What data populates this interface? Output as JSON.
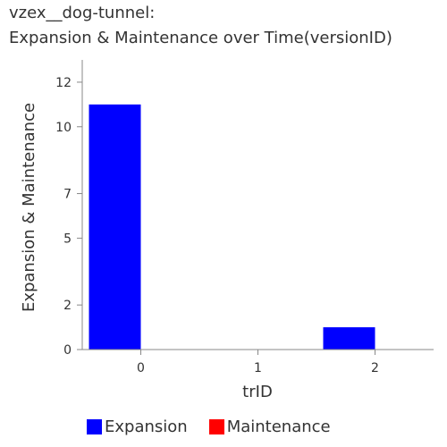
{
  "chart_data": {
    "type": "bar",
    "title_lines": [
      "vzex__dog-tunnel:",
      "Expansion & Maintenance over Time(versionID)"
    ],
    "xlabel": "trID",
    "ylabel": "Expansion & Maintenance",
    "categories": [
      "0",
      "1",
      "2"
    ],
    "series": [
      {
        "name": "Expansion",
        "color": "#0000ff",
        "values": [
          11,
          0,
          1
        ]
      },
      {
        "name": "Maintenance",
        "color": "#ff0000",
        "values": [
          0,
          0,
          0
        ]
      }
    ],
    "ylim": [
      0,
      13
    ],
    "yticks": [
      0,
      2,
      5,
      7,
      10,
      12
    ],
    "grid": false,
    "legend_position": "bottom"
  }
}
